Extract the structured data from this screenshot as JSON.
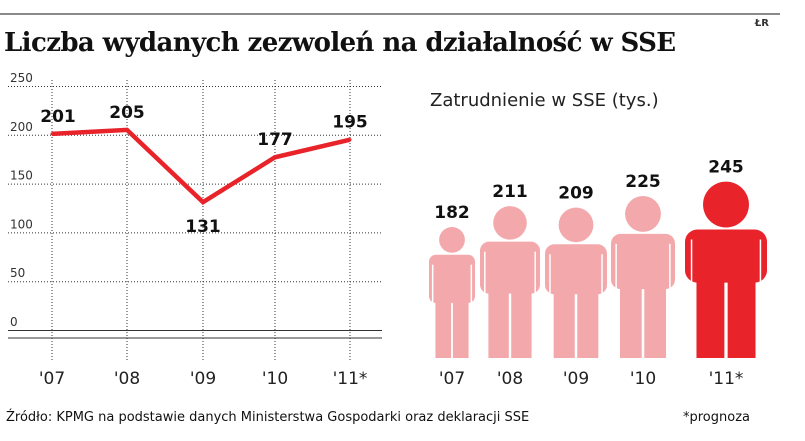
{
  "header": {
    "title": "Liczba wydanych zezwoleń na działalność w SSE",
    "credit": "ŁR"
  },
  "footer": {
    "source": "Źródło: KPMG na podstawie danych Ministerstwa Gospodarki oraz deklaracji SSE",
    "note": "*prognoza"
  },
  "colors": {
    "line": "#e8232a",
    "figure_light": "#f3a9ac",
    "figure_highlight": "#e8232a",
    "grid": "#333333"
  },
  "chart_data": [
    {
      "type": "line",
      "title": "Liczba wydanych zezwoleń na działalność w SSE",
      "categories": [
        "'07",
        "'08",
        "'09",
        "'10",
        "'11*"
      ],
      "values": [
        201,
        205,
        131,
        177,
        195
      ],
      "labels": [
        "201",
        "205",
        "131",
        "177",
        "195"
      ],
      "yticks": [
        "0",
        "50",
        "100",
        "150",
        "200",
        "250"
      ],
      "ylim": [
        0,
        250
      ],
      "grid": true
    },
    {
      "type": "bar",
      "title": "Zatrudnienie w SSE (tys.)",
      "categories": [
        "'07",
        "'08",
        "'09",
        "'10",
        "'11*"
      ],
      "values": [
        182,
        211,
        209,
        225,
        245
      ],
      "labels": [
        "182",
        "211",
        "209",
        "225",
        "245"
      ],
      "highlight": "'11*",
      "unit": "tys."
    }
  ]
}
